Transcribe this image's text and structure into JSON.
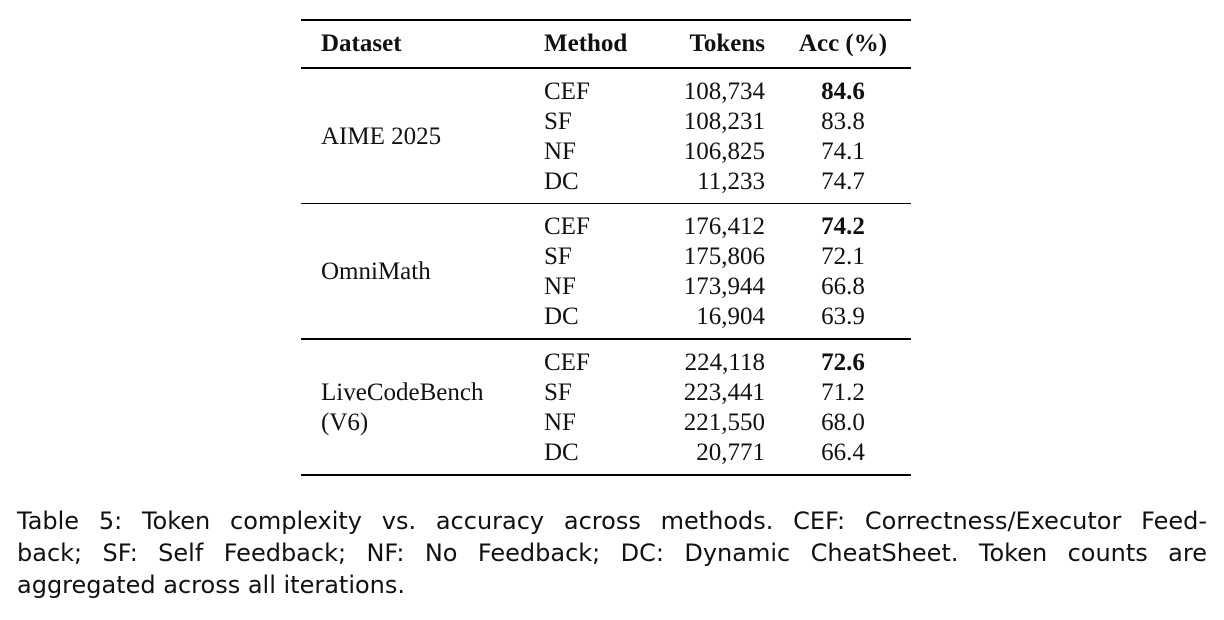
{
  "table": {
    "headers": {
      "dataset": "Dataset",
      "method": "Method",
      "tokens": "Tokens",
      "acc": "Acc (%)"
    },
    "groups": [
      {
        "dataset_lines": [
          "AIME 2025"
        ],
        "rows": [
          {
            "method": "CEF",
            "tokens": "108,734",
            "acc": "84.6",
            "best": true
          },
          {
            "method": "SF",
            "tokens": "108,231",
            "acc": "83.8",
            "best": false
          },
          {
            "method": "NF",
            "tokens": "106,825",
            "acc": "74.1",
            "best": false
          },
          {
            "method": "DC",
            "tokens": "11,233",
            "acc": "74.7",
            "best": false
          }
        ]
      },
      {
        "dataset_lines": [
          "OmniMath"
        ],
        "rows": [
          {
            "method": "CEF",
            "tokens": "176,412",
            "acc": "74.2",
            "best": true
          },
          {
            "method": "SF",
            "tokens": "175,806",
            "acc": "72.1",
            "best": false
          },
          {
            "method": "NF",
            "tokens": "173,944",
            "acc": "66.8",
            "best": false
          },
          {
            "method": "DC",
            "tokens": "16,904",
            "acc": "63.9",
            "best": false
          }
        ]
      },
      {
        "dataset_lines": [
          "LiveCodeBench",
          "(V6)"
        ],
        "rows": [
          {
            "method": "CEF",
            "tokens": "224,118",
            "acc": "72.6",
            "best": true
          },
          {
            "method": "SF",
            "tokens": "223,441",
            "acc": "71.2",
            "best": false
          },
          {
            "method": "NF",
            "tokens": "221,550",
            "acc": "68.0",
            "best": false
          },
          {
            "method": "DC",
            "tokens": "20,771",
            "acc": "66.4",
            "best": false
          }
        ]
      }
    ]
  },
  "caption": {
    "lines": [
      "Table 5: Token complexity vs. accuracy across methods. CEF: Correctness/Executor Feed-",
      "back; SF: Self Feedback; NF: No Feedback; DC: Dynamic CheatSheet.  Token counts are",
      "aggregated across all iterations."
    ]
  }
}
